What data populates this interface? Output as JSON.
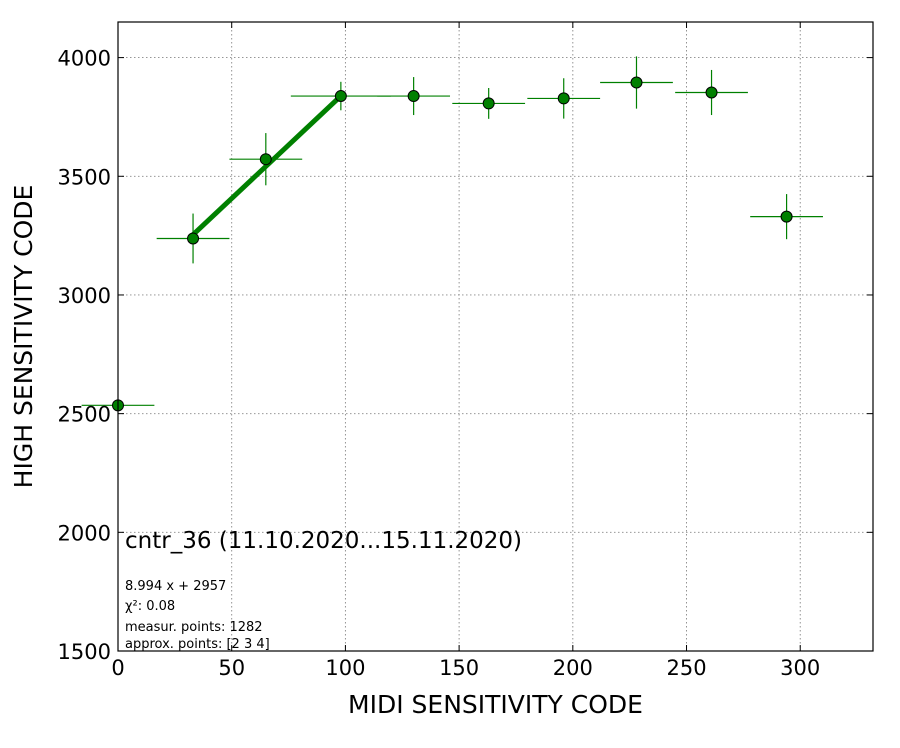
{
  "chart_data": {
    "type": "scatter",
    "xlabel": "MIDI SENSITIVITY CODE",
    "ylabel": "HIGH SENSITIVITY CODE",
    "xlim": [
      0,
      332
    ],
    "ylim": [
      1500,
      4150
    ],
    "x_ticks": [
      0,
      50,
      100,
      150,
      200,
      250,
      300
    ],
    "y_ticks": [
      1500,
      2000,
      2500,
      3000,
      3500,
      4000
    ],
    "x_tick_labels": [
      "0",
      "50",
      "100",
      "150",
      "200",
      "250",
      "300"
    ],
    "y_tick_labels": [
      "1500",
      "2000",
      "2500",
      "3000",
      "3500",
      "4000"
    ],
    "grid": true,
    "color": "#008000",
    "points": [
      {
        "x": 0,
        "y": 2535,
        "xerr": 16,
        "yerr": 0
      },
      {
        "x": 33,
        "y": 3238,
        "xerr": 16,
        "yerr": 105
      },
      {
        "x": 65,
        "y": 3572,
        "xerr": 16,
        "yerr": 110
      },
      {
        "x": 98,
        "y": 3838,
        "xerr": 22,
        "yerr": 60
      },
      {
        "x": 130,
        "y": 3838,
        "xerr": 16,
        "yerr": 80
      },
      {
        "x": 163,
        "y": 3807,
        "xerr": 16,
        "yerr": 65
      },
      {
        "x": 196,
        "y": 3828,
        "xerr": 16,
        "yerr": 85
      },
      {
        "x": 228,
        "y": 3895,
        "xerr": 16,
        "yerr": 110
      },
      {
        "x": 261,
        "y": 3853,
        "xerr": 16,
        "yerr": 95
      },
      {
        "x": 294,
        "y": 3330,
        "xerr": 16,
        "yerr": 95
      }
    ],
    "fit": {
      "slope": 8.994,
      "intercept": 2957,
      "x_range": [
        33,
        98
      ]
    },
    "annotation_main": "cntr_36 (11.10.2020...15.11.2020)",
    "annotation_lines": [
      "8.994 x + 2957",
      "χ²: 0.08",
      "measur. points: 1282",
      "approx. points: [2 3 4]"
    ]
  }
}
